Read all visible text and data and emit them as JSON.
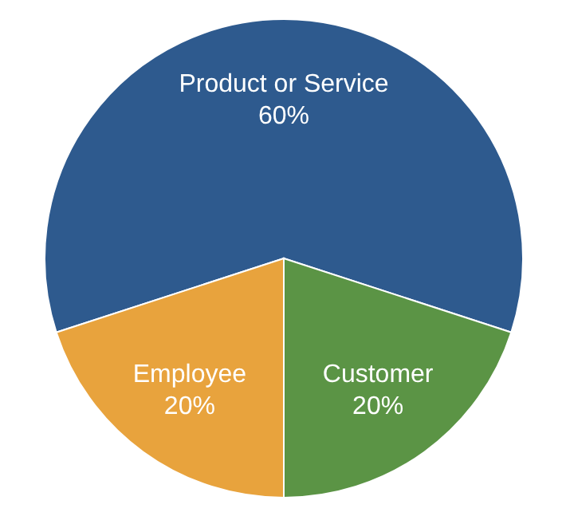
{
  "chart_data": {
    "type": "pie",
    "categories": [
      "Product or Service",
      "Customer",
      "Employee"
    ],
    "values": [
      60,
      20,
      20
    ],
    "colors": [
      "#2e5a8e",
      "#5b9445",
      "#e8a33d"
    ],
    "value_labels": [
      "60%",
      "20%",
      "20%"
    ]
  }
}
